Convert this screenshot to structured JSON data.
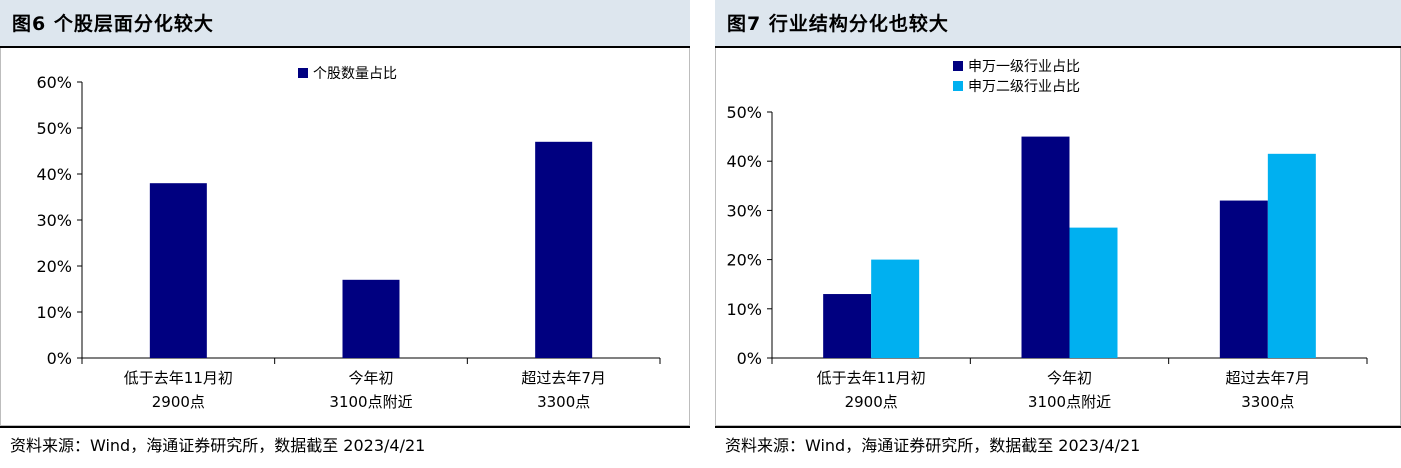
{
  "charts": [
    {
      "title": "图6  个股层面分化较大",
      "source": "资料来源：Wind，海通证券研究所，数据截至 2023/4/21",
      "chart_data": {
        "type": "bar",
        "categories": [
          [
            "低于去年11月初",
            "2900点"
          ],
          [
            "今年初",
            "3100点附近"
          ],
          [
            "超过去年7月",
            "3300点"
          ]
        ],
        "series": [
          {
            "name": "个股数量占比",
            "values": [
              0.38,
              0.17,
              0.47
            ],
            "color": "#000080"
          }
        ],
        "ylim": [
          0,
          0.6
        ],
        "yticks": [
          0,
          0.1,
          0.2,
          0.3,
          0.4,
          0.5,
          0.6
        ],
        "ytick_labels": [
          "0%",
          "10%",
          "20%",
          "30%",
          "40%",
          "50%",
          "60%"
        ],
        "legend": "top-center",
        "grid": false
      }
    },
    {
      "title": "图7  行业结构分化也较大",
      "source": "资料来源：Wind，海通证券研究所，数据截至 2023/4/21",
      "chart_data": {
        "type": "bar",
        "categories": [
          [
            "低于去年11月初",
            "2900点"
          ],
          [
            "今年初",
            "3100点附近"
          ],
          [
            "超过去年7月",
            "3300点"
          ]
        ],
        "series": [
          {
            "name": "申万一级行业占比",
            "values": [
              0.13,
              0.45,
              0.32
            ],
            "color": "#000080"
          },
          {
            "name": "申万二级行业占比",
            "values": [
              0.2,
              0.265,
              0.415
            ],
            "color": "#00b0f0"
          }
        ],
        "ylim": [
          0,
          0.5
        ],
        "yticks": [
          0,
          0.1,
          0.2,
          0.3,
          0.4,
          0.5
        ],
        "ytick_labels": [
          "0%",
          "10%",
          "20%",
          "30%",
          "40%",
          "50%"
        ],
        "legend": "top-center",
        "grid": false
      }
    }
  ]
}
